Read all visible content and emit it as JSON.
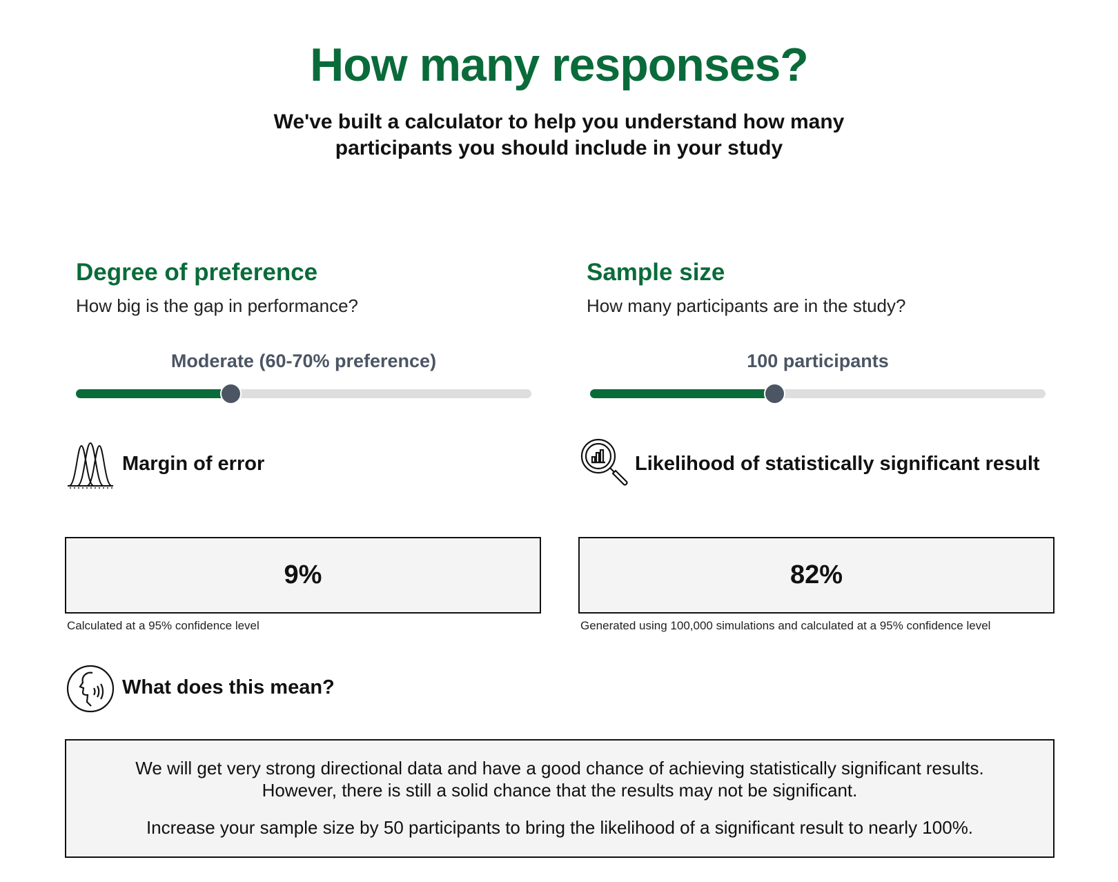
{
  "header": {
    "title": "How many responses?",
    "subtitle": "We've built a calculator to help you understand how many participants you should include in your study"
  },
  "preference": {
    "title": "Degree of preference",
    "question": "How big is the gap in performance?",
    "slider_label": "Moderate (60-70% preference)",
    "slider_fraction": 0.34
  },
  "sample": {
    "title": "Sample size",
    "question": "How many participants are in the study?",
    "slider_label": "100 participants",
    "slider_fraction": 0.405
  },
  "margin": {
    "heading": "Margin of error",
    "icon": "bell-curves-icon",
    "value": "9%",
    "note": "Calculated at a 95% confidence level"
  },
  "likelihood": {
    "heading": "Likelihood of statistically significant result",
    "icon": "magnifier-chart-icon",
    "value": "82%",
    "note": "Generated using 100,000 simulations and calculated at a 95% confidence level"
  },
  "meaning": {
    "heading": "What does this mean?",
    "icon": "speaking-head-icon",
    "paragraph1": "We will get very strong directional data and have a good chance of achieving statistically significant results. However, there is still a solid chance that the results may not be significant.",
    "paragraph2": "Increase your sample size by 50 participants to bring the likelihood of a significant result to nearly 100%."
  },
  "colors": {
    "brand_green": "#0a6b3a",
    "slider_thumb": "#4b5563",
    "track": "#dedede",
    "box_bg": "#f5f4f4"
  }
}
